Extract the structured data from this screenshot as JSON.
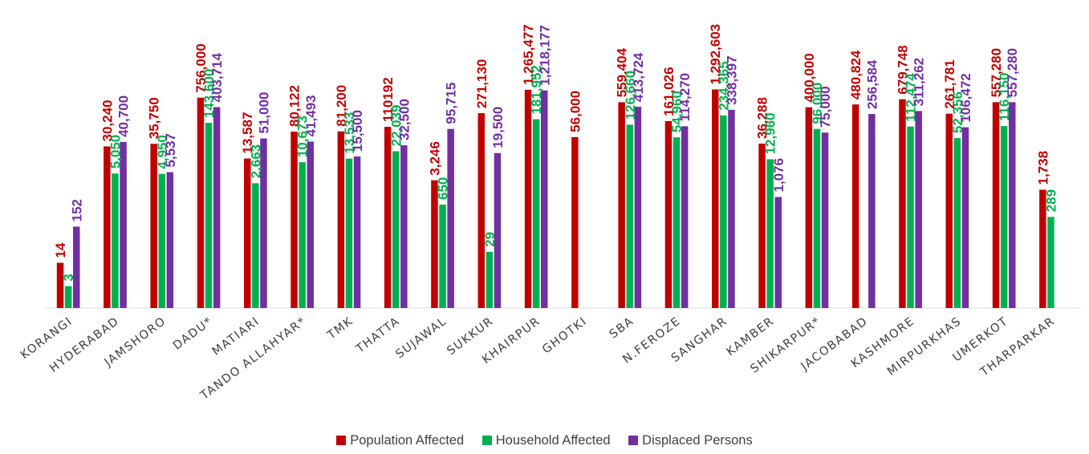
{
  "chart_data": {
    "type": "bar",
    "title": "",
    "xlabel": "",
    "ylabel": "",
    "grid": false,
    "legend_position": "bottom",
    "categories": [
      "KORANGI",
      "HYDERABAD",
      "JAMSHORO",
      "DADU*",
      "MATIARI",
      "TANDO ALLAHYAR*",
      "TMK",
      "THATTA",
      "SUJAWAL",
      "SUKKUR",
      "KHAIRPUR",
      "GHOTKI",
      "SBA",
      "N.FEROZE",
      "SANGHAR",
      "KAMBER",
      "SHIKARPUR*",
      "JACOBABAD",
      "KASHMORE",
      "MIRPURKHAS",
      "UMERKOT",
      "THARPARKAR"
    ],
    "series": [
      {
        "name": "Population Affected",
        "color": "#c00000",
        "values": [
          14,
          30240,
          35750,
          756000,
          13587,
          80122,
          81200,
          110192,
          3246,
          271130,
          1265477,
          56000,
          559404,
          161026,
          1292603,
          36288,
          400000,
          480824,
          679748,
          261781,
          557280,
          1738
        ],
        "labels": [
          "14",
          "30,240",
          "35,750",
          "756,000",
          "13,587",
          "80,122",
          "81,200",
          "110192",
          "3,246",
          "271,130",
          "1,265,477",
          "56,000",
          "559,404",
          "161,026",
          "1,292,603",
          "36,288",
          "400,000",
          "480,824",
          "679,748",
          "261,781",
          "557,280",
          "1,738"
        ]
      },
      {
        "name": "Household Affected",
        "color": "#00b050",
        "values": [
          3,
          5050,
          4950,
          143600,
          2663,
          10673,
          13533,
          22039,
          650,
          29,
          181952,
          null,
          126660,
          54960,
          234365,
          12960,
          96000,
          null,
          112474,
          52356,
          116150,
          289
        ],
        "labels": [
          "3",
          "5,050",
          "4,950",
          "143,600",
          "2,663",
          "10,673",
          "13,533",
          "22,039",
          "650",
          "29",
          "181,952",
          "",
          "126,660",
          "54,960",
          "234,365",
          "12,960",
          "96,000",
          "",
          "112,474",
          "52,356",
          "116,150",
          "289"
        ]
      },
      {
        "name": "Displaced Persons",
        "color": "#7030a0",
        "values": [
          152,
          40700,
          5537,
          403714,
          51000,
          41493,
          15500,
          32500,
          95715,
          19500,
          1218177,
          null,
          413724,
          114270,
          338397,
          1076,
          75000,
          256584,
          311262,
          106472,
          557280,
          null
        ],
        "labels": [
          "152",
          "40,700",
          "5,537",
          "403,714",
          "51,000",
          "41,493",
          "15,500",
          "32,500",
          "95,715",
          "19,500",
          "1,218,177",
          "",
          "413,724",
          "114,270",
          "338,397",
          "1,076",
          "75,000",
          "256,584",
          "311,262",
          "106,472",
          "557,280",
          ""
        ]
      }
    ]
  }
}
